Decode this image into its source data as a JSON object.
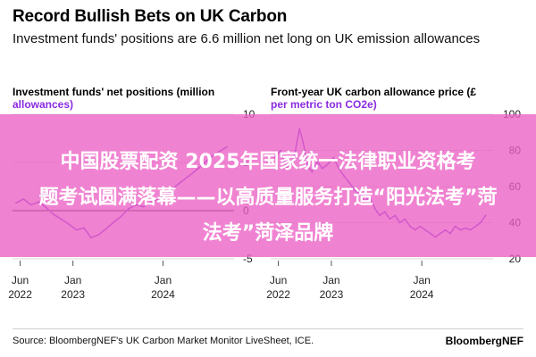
{
  "header": {
    "title": "Record Bullish Bets on UK Carbon",
    "subtitle": "Investment funds' positions are 6.6 million net long on UK emission allowances"
  },
  "overlay": {
    "line1": "中国股票配资 2025年国家统一法律职业资格考",
    "line2": "题考试圆满落幕——以高质量服务打造“阳光法考”菏",
    "line3": "法考”菏泽品牌"
  },
  "footer": {
    "source": "Source: BloombergNEF's UK Carbon Market Monitor LiveSheet, ICE.",
    "brand": "BloombergNEF"
  },
  "colors": {
    "line": "#7b3fe4",
    "title_accent": "#8a2be2",
    "banner": "#ec60c4",
    "zero_line": "#000000",
    "grid": "#d9d9d9"
  },
  "chart_data": [
    {
      "type": "line",
      "title": "Investment funds' net positions (million allowances)",
      "title_plain": "Investment funds' net positions (million",
      "title_accent": "allowances)",
      "ylim": [
        -5,
        10
      ],
      "yticks": [
        "10",
        "5",
        "0",
        "-5"
      ],
      "ytick_values": [
        10,
        5,
        0,
        -5
      ],
      "xticks": [
        {
          "line1": "Jun",
          "line2": "2022",
          "date": "2022-06-01"
        },
        {
          "line1": "Jan",
          "line2": "2023",
          "date": "2023-01-01"
        },
        {
          "line1": "Jan",
          "line2": "2024",
          "date": "2024-01-01"
        }
      ],
      "xlim": [
        "2022-05-01",
        "2024-10-15"
      ],
      "zero_line": true,
      "series": [
        {
          "points": [
            [
              "2022-05-15",
              0.8
            ],
            [
              "2022-06-15",
              1.2
            ],
            [
              "2022-07-15",
              0.6
            ],
            [
              "2022-08-15",
              0.9
            ],
            [
              "2022-09-15",
              0.3
            ],
            [
              "2022-10-15",
              -0.4
            ],
            [
              "2022-11-15",
              -0.9
            ],
            [
              "2022-12-15",
              -1.4
            ],
            [
              "2023-01-15",
              -2.0
            ],
            [
              "2023-02-15",
              -1.8
            ],
            [
              "2023-03-15",
              -2.8
            ],
            [
              "2023-04-15",
              -2.5
            ],
            [
              "2023-05-15",
              -1.9
            ],
            [
              "2023-06-15",
              -1.2
            ],
            [
              "2023-07-15",
              -0.6
            ],
            [
              "2023-08-15",
              0.2
            ],
            [
              "2023-09-15",
              0.6
            ],
            [
              "2023-10-15",
              0.4
            ],
            [
              "2023-11-15",
              0.9
            ],
            [
              "2023-12-15",
              1.3
            ],
            [
              "2024-01-15",
              1.6
            ],
            [
              "2024-02-15",
              2.4
            ],
            [
              "2024-03-15",
              3.0
            ],
            [
              "2024-04-15",
              3.6
            ],
            [
              "2024-05-15",
              4.2
            ],
            [
              "2024-06-15",
              4.9
            ],
            [
              "2024-07-15",
              5.6
            ],
            [
              "2024-08-15",
              6.1
            ],
            [
              "2024-09-15",
              6.6
            ]
          ]
        }
      ]
    },
    {
      "type": "line",
      "title": "Front-year UK carbon allowance price (£ per metric ton CO2e)",
      "title_plain": "Front-year UK carbon allowance price (£",
      "title_accent": "per metric ton CO2e)",
      "ylim": [
        20,
        100
      ],
      "yticks": [
        "100",
        "80",
        "60",
        "40",
        "20"
      ],
      "ytick_values": [
        100,
        80,
        60,
        40,
        20
      ],
      "xticks": [
        {
          "line1": "Jun",
          "line2": "2022",
          "date": "2022-06-01"
        },
        {
          "line1": "Jan",
          "line2": "2023",
          "date": "2023-01-01"
        },
        {
          "line1": "Jan",
          "line2": "2024",
          "date": "2024-01-01"
        }
      ],
      "xlim": [
        "2022-05-01",
        "2024-10-15"
      ],
      "zero_line": false,
      "series": [
        {
          "points": [
            [
              "2022-05-15",
              76
            ],
            [
              "2022-06-10",
              80
            ],
            [
              "2022-07-05",
              70
            ],
            [
              "2022-08-01",
              74
            ],
            [
              "2022-08-25",
              92
            ],
            [
              "2022-09-10",
              84
            ],
            [
              "2022-09-25",
              72
            ],
            [
              "2022-10-15",
              68
            ],
            [
              "2022-11-05",
              74
            ],
            [
              "2022-11-25",
              70
            ],
            [
              "2022-12-15",
              72
            ],
            [
              "2023-01-10",
              76
            ],
            [
              "2023-01-31",
              70
            ],
            [
              "2023-02-20",
              66
            ],
            [
              "2023-03-15",
              62
            ],
            [
              "2023-04-05",
              58
            ],
            [
              "2023-04-25",
              56
            ],
            [
              "2023-05-15",
              52
            ],
            [
              "2023-06-05",
              54
            ],
            [
              "2023-06-25",
              48
            ],
            [
              "2023-07-15",
              44
            ],
            [
              "2023-08-05",
              46
            ],
            [
              "2023-08-25",
              42
            ],
            [
              "2023-09-15",
              44
            ],
            [
              "2023-10-05",
              40
            ],
            [
              "2023-10-25",
              42
            ],
            [
              "2023-11-15",
              38
            ],
            [
              "2023-12-05",
              36
            ],
            [
              "2023-12-25",
              38
            ],
            [
              "2024-01-15",
              36
            ],
            [
              "2024-02-05",
              34
            ],
            [
              "2024-02-25",
              32
            ],
            [
              "2024-03-15",
              34
            ],
            [
              "2024-04-05",
              36
            ],
            [
              "2024-04-25",
              34
            ],
            [
              "2024-05-15",
              38
            ],
            [
              "2024-06-05",
              36
            ],
            [
              "2024-06-25",
              37
            ],
            [
              "2024-07-15",
              36
            ],
            [
              "2024-08-05",
              38
            ],
            [
              "2024-08-25",
              40
            ],
            [
              "2024-09-15",
              44
            ]
          ]
        }
      ]
    }
  ]
}
